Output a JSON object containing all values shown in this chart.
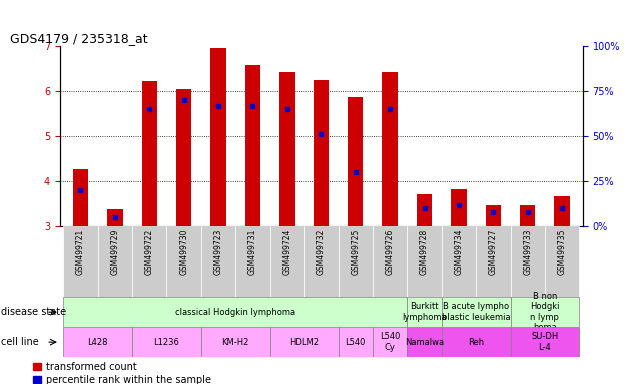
{
  "title": "GDS4179 / 235318_at",
  "samples": [
    "GSM499721",
    "GSM499729",
    "GSM499722",
    "GSM499730",
    "GSM499723",
    "GSM499731",
    "GSM499724",
    "GSM499732",
    "GSM499725",
    "GSM499726",
    "GSM499728",
    "GSM499734",
    "GSM499727",
    "GSM499733",
    "GSM499735"
  ],
  "transformed_count": [
    4.27,
    3.38,
    6.22,
    6.05,
    6.95,
    6.58,
    6.42,
    6.25,
    5.88,
    6.42,
    3.72,
    3.82,
    3.46,
    3.48,
    3.68
  ],
  "percentile_rank": [
    20,
    5,
    65,
    70,
    67,
    67,
    65,
    51,
    30,
    65,
    10,
    12,
    8,
    8,
    10
  ],
  "ylim_left": [
    3,
    7
  ],
  "ylim_right": [
    0,
    100
  ],
  "yticks_left": [
    3,
    4,
    5,
    6,
    7
  ],
  "yticks_right": [
    0,
    25,
    50,
    75,
    100
  ],
  "bar_color": "#cc0000",
  "marker_color": "#0000cc",
  "left_tick_color": "#cc0000",
  "right_tick_color": "#0000cc",
  "disease_state_groups": [
    {
      "label": "classical Hodgkin lymphoma",
      "start": 0,
      "end": 9,
      "color": "#ccffcc"
    },
    {
      "label": "Burkitt\nlymphoma",
      "start": 10,
      "end": 10,
      "color": "#ccffcc"
    },
    {
      "label": "B acute lympho\nblastic leukemia",
      "start": 11,
      "end": 12,
      "color": "#ccffcc"
    },
    {
      "label": "B non\nHodgki\nn lymp\nhoma",
      "start": 13,
      "end": 14,
      "color": "#ccffcc"
    }
  ],
  "cell_line_groups": [
    {
      "label": "L428",
      "start": 0,
      "end": 1,
      "color": "#ffaaff"
    },
    {
      "label": "L1236",
      "start": 2,
      "end": 3,
      "color": "#ffaaff"
    },
    {
      "label": "KM-H2",
      "start": 4,
      "end": 5,
      "color": "#ffaaff"
    },
    {
      "label": "HDLM2",
      "start": 6,
      "end": 7,
      "color": "#ffaaff"
    },
    {
      "label": "L540",
      "start": 8,
      "end": 8,
      "color": "#ffaaff"
    },
    {
      "label": "L540\nCy",
      "start": 9,
      "end": 9,
      "color": "#ffaaff"
    },
    {
      "label": "Namalwa",
      "start": 10,
      "end": 10,
      "color": "#ee55ee"
    },
    {
      "label": "Reh",
      "start": 11,
      "end": 12,
      "color": "#ee55ee"
    },
    {
      "label": "SU-DH\nL-4",
      "start": 13,
      "end": 14,
      "color": "#ee55ee"
    }
  ],
  "tick_label_bg": "#cccccc",
  "row_label_fontsize": 7,
  "tick_fontsize": 7,
  "sample_fontsize": 5.5,
  "table_fontsize": 6
}
